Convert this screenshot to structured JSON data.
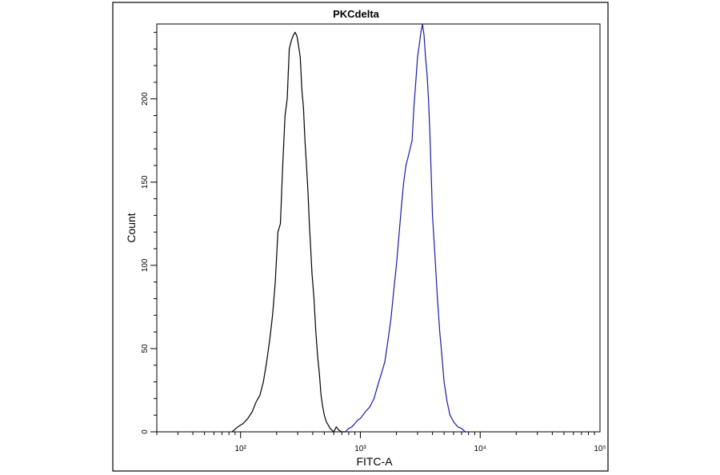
{
  "chart_data": {
    "type": "line",
    "title": "PKCdelta",
    "xlabel": "FITC-A",
    "ylabel": "Count",
    "x_scale": "log",
    "xlim": [
      20,
      100000
    ],
    "ylim": [
      0,
      245
    ],
    "x_ticks": [
      {
        "value": 100,
        "label": "10²"
      },
      {
        "value": 1000,
        "label": "10³"
      },
      {
        "value": 10000,
        "label": "10⁴"
      },
      {
        "value": 100000,
        "label": "10⁵"
      }
    ],
    "y_ticks": [
      {
        "value": 0,
        "label": "0"
      },
      {
        "value": 50,
        "label": "50"
      },
      {
        "value": 100,
        "label": "100"
      },
      {
        "value": 150,
        "label": "150"
      },
      {
        "value": 200,
        "label": "200"
      }
    ],
    "grid": false,
    "legend": "none",
    "series": [
      {
        "color": "#000000",
        "x": [
          85,
          95,
          105,
          115,
          125,
          135,
          145,
          155,
          165,
          175,
          185,
          195,
          205,
          215,
          225,
          235,
          245,
          255,
          265,
          275,
          285,
          295,
          305,
          315,
          325,
          335,
          345,
          355,
          365,
          375,
          385,
          395,
          410,
          425,
          440,
          455,
          470,
          485,
          500,
          520,
          540,
          560,
          580,
          600,
          630,
          660,
          700,
          750
        ],
        "y": [
          0,
          3,
          5,
          8,
          12,
          18,
          22,
          30,
          42,
          55,
          70,
          90,
          120,
          125,
          160,
          190,
          200,
          230,
          235,
          238,
          240,
          238,
          232,
          225,
          205,
          195,
          175,
          160,
          145,
          125,
          110,
          95,
          80,
          60,
          45,
          35,
          22,
          15,
          10,
          6,
          4,
          2,
          1,
          0,
          3,
          1,
          0,
          0
        ]
      },
      {
        "color": "#1a1aa8",
        "x": [
          750,
          800,
          850,
          900,
          950,
          1000,
          1100,
          1200,
          1300,
          1400,
          1500,
          1600,
          1700,
          1800,
          1900,
          2000,
          2100,
          2200,
          2300,
          2400,
          2500,
          2600,
          2700,
          2800,
          2900,
          3000,
          3100,
          3200,
          3300,
          3400,
          3500,
          3600,
          3700,
          3800,
          3900,
          4000,
          4200,
          4400,
          4600,
          4800,
          5000,
          5300,
          5600,
          6000,
          6500,
          7000,
          7500,
          8000
        ],
        "y": [
          0,
          2,
          3,
          5,
          7,
          8,
          12,
          15,
          20,
          28,
          35,
          42,
          55,
          68,
          85,
          100,
          118,
          135,
          150,
          160,
          165,
          170,
          175,
          195,
          210,
          225,
          232,
          240,
          245,
          238,
          225,
          215,
          200,
          180,
          155,
          130,
          105,
          80,
          60,
          45,
          30,
          18,
          10,
          6,
          3,
          2,
          0,
          0
        ]
      }
    ]
  }
}
